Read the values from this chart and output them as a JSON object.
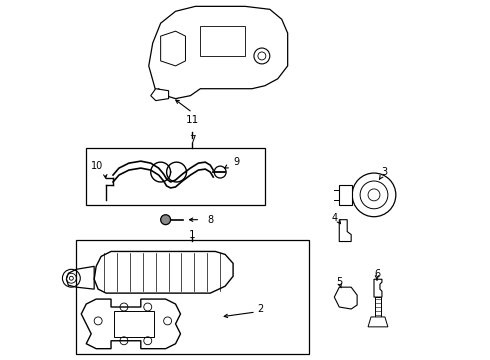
{
  "bg_color": "#ffffff",
  "line_color": "#000000",
  "fig_width": 4.9,
  "fig_height": 3.6,
  "dpi": 100,
  "label_fontsize": 7.5
}
